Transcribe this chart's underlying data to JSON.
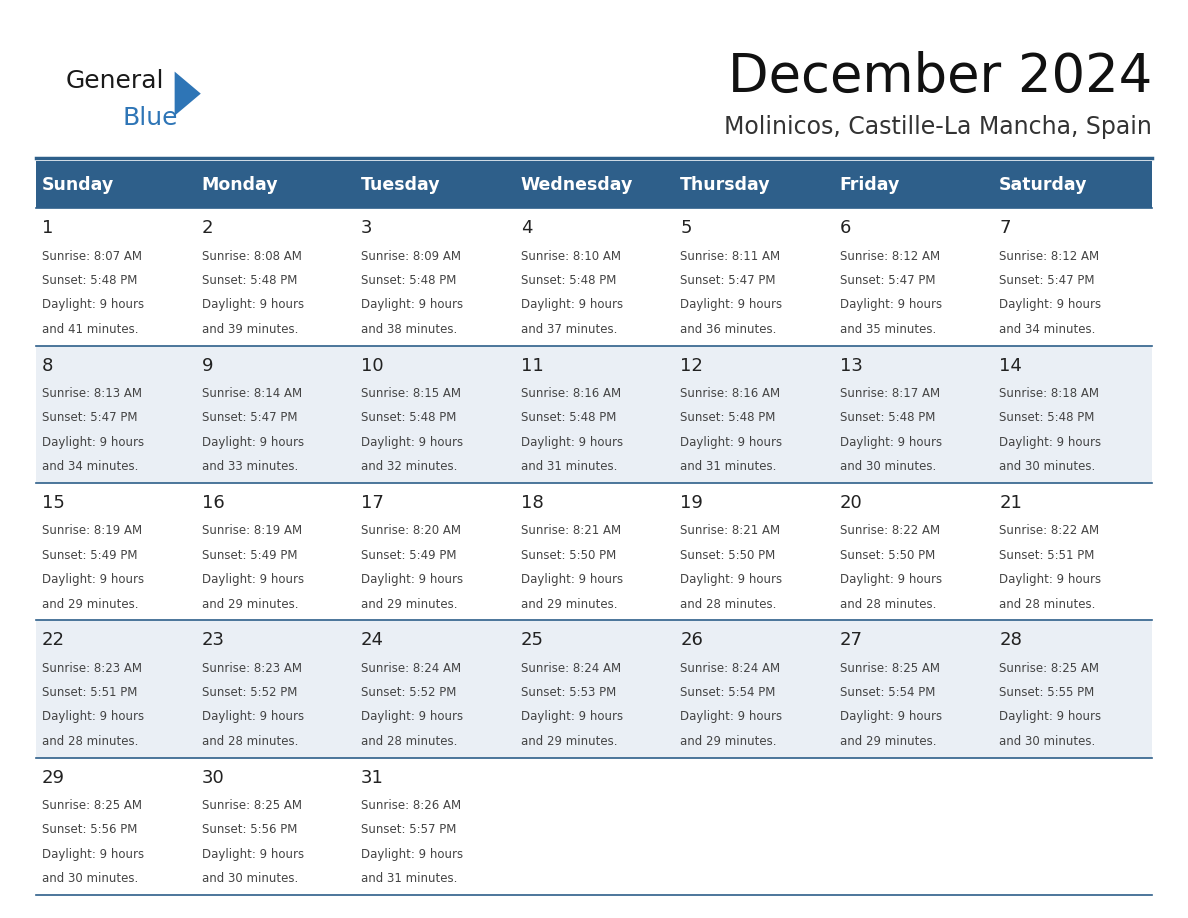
{
  "title": "December 2024",
  "subtitle": "Molinicos, Castille-La Mancha, Spain",
  "header_color": "#2E5F8A",
  "header_text_color": "#FFFFFF",
  "days_of_week": [
    "Sunday",
    "Monday",
    "Tuesday",
    "Wednesday",
    "Thursday",
    "Friday",
    "Saturday"
  ],
  "cell_data": [
    [
      {
        "day": 1,
        "sunrise": "8:07 AM",
        "sunset": "5:48 PM",
        "daylight_hours": 9,
        "daylight_minutes": 41
      },
      {
        "day": 2,
        "sunrise": "8:08 AM",
        "sunset": "5:48 PM",
        "daylight_hours": 9,
        "daylight_minutes": 39
      },
      {
        "day": 3,
        "sunrise": "8:09 AM",
        "sunset": "5:48 PM",
        "daylight_hours": 9,
        "daylight_minutes": 38
      },
      {
        "day": 4,
        "sunrise": "8:10 AM",
        "sunset": "5:48 PM",
        "daylight_hours": 9,
        "daylight_minutes": 37
      },
      {
        "day": 5,
        "sunrise": "8:11 AM",
        "sunset": "5:47 PM",
        "daylight_hours": 9,
        "daylight_minutes": 36
      },
      {
        "day": 6,
        "sunrise": "8:12 AM",
        "sunset": "5:47 PM",
        "daylight_hours": 9,
        "daylight_minutes": 35
      },
      {
        "day": 7,
        "sunrise": "8:12 AM",
        "sunset": "5:47 PM",
        "daylight_hours": 9,
        "daylight_minutes": 34
      }
    ],
    [
      {
        "day": 8,
        "sunrise": "8:13 AM",
        "sunset": "5:47 PM",
        "daylight_hours": 9,
        "daylight_minutes": 34
      },
      {
        "day": 9,
        "sunrise": "8:14 AM",
        "sunset": "5:47 PM",
        "daylight_hours": 9,
        "daylight_minutes": 33
      },
      {
        "day": 10,
        "sunrise": "8:15 AM",
        "sunset": "5:48 PM",
        "daylight_hours": 9,
        "daylight_minutes": 32
      },
      {
        "day": 11,
        "sunrise": "8:16 AM",
        "sunset": "5:48 PM",
        "daylight_hours": 9,
        "daylight_minutes": 31
      },
      {
        "day": 12,
        "sunrise": "8:16 AM",
        "sunset": "5:48 PM",
        "daylight_hours": 9,
        "daylight_minutes": 31
      },
      {
        "day": 13,
        "sunrise": "8:17 AM",
        "sunset": "5:48 PM",
        "daylight_hours": 9,
        "daylight_minutes": 30
      },
      {
        "day": 14,
        "sunrise": "8:18 AM",
        "sunset": "5:48 PM",
        "daylight_hours": 9,
        "daylight_minutes": 30
      }
    ],
    [
      {
        "day": 15,
        "sunrise": "8:19 AM",
        "sunset": "5:49 PM",
        "daylight_hours": 9,
        "daylight_minutes": 29
      },
      {
        "day": 16,
        "sunrise": "8:19 AM",
        "sunset": "5:49 PM",
        "daylight_hours": 9,
        "daylight_minutes": 29
      },
      {
        "day": 17,
        "sunrise": "8:20 AM",
        "sunset": "5:49 PM",
        "daylight_hours": 9,
        "daylight_minutes": 29
      },
      {
        "day": 18,
        "sunrise": "8:21 AM",
        "sunset": "5:50 PM",
        "daylight_hours": 9,
        "daylight_minutes": 29
      },
      {
        "day": 19,
        "sunrise": "8:21 AM",
        "sunset": "5:50 PM",
        "daylight_hours": 9,
        "daylight_minutes": 28
      },
      {
        "day": 20,
        "sunrise": "8:22 AM",
        "sunset": "5:50 PM",
        "daylight_hours": 9,
        "daylight_minutes": 28
      },
      {
        "day": 21,
        "sunrise": "8:22 AM",
        "sunset": "5:51 PM",
        "daylight_hours": 9,
        "daylight_minutes": 28
      }
    ],
    [
      {
        "day": 22,
        "sunrise": "8:23 AM",
        "sunset": "5:51 PM",
        "daylight_hours": 9,
        "daylight_minutes": 28
      },
      {
        "day": 23,
        "sunrise": "8:23 AM",
        "sunset": "5:52 PM",
        "daylight_hours": 9,
        "daylight_minutes": 28
      },
      {
        "day": 24,
        "sunrise": "8:24 AM",
        "sunset": "5:52 PM",
        "daylight_hours": 9,
        "daylight_minutes": 28
      },
      {
        "day": 25,
        "sunrise": "8:24 AM",
        "sunset": "5:53 PM",
        "daylight_hours": 9,
        "daylight_minutes": 29
      },
      {
        "day": 26,
        "sunrise": "8:24 AM",
        "sunset": "5:54 PM",
        "daylight_hours": 9,
        "daylight_minutes": 29
      },
      {
        "day": 27,
        "sunrise": "8:25 AM",
        "sunset": "5:54 PM",
        "daylight_hours": 9,
        "daylight_minutes": 29
      },
      {
        "day": 28,
        "sunrise": "8:25 AM",
        "sunset": "5:55 PM",
        "daylight_hours": 9,
        "daylight_minutes": 30
      }
    ],
    [
      {
        "day": 29,
        "sunrise": "8:25 AM",
        "sunset": "5:56 PM",
        "daylight_hours": 9,
        "daylight_minutes": 30
      },
      {
        "day": 30,
        "sunrise": "8:25 AM",
        "sunset": "5:56 PM",
        "daylight_hours": 9,
        "daylight_minutes": 30
      },
      {
        "day": 31,
        "sunrise": "8:26 AM",
        "sunset": "5:57 PM",
        "daylight_hours": 9,
        "daylight_minutes": 31
      },
      null,
      null,
      null,
      null
    ]
  ],
  "bg_color_even": "#EAEFF5",
  "bg_color_odd": "#FFFFFF",
  "line_color": "#2E5F8A",
  "text_color_day": "#222222",
  "text_color_info": "#444444",
  "logo_text1": "General",
  "logo_text2": "Blue",
  "logo_triangle_color": "#2E75B6"
}
